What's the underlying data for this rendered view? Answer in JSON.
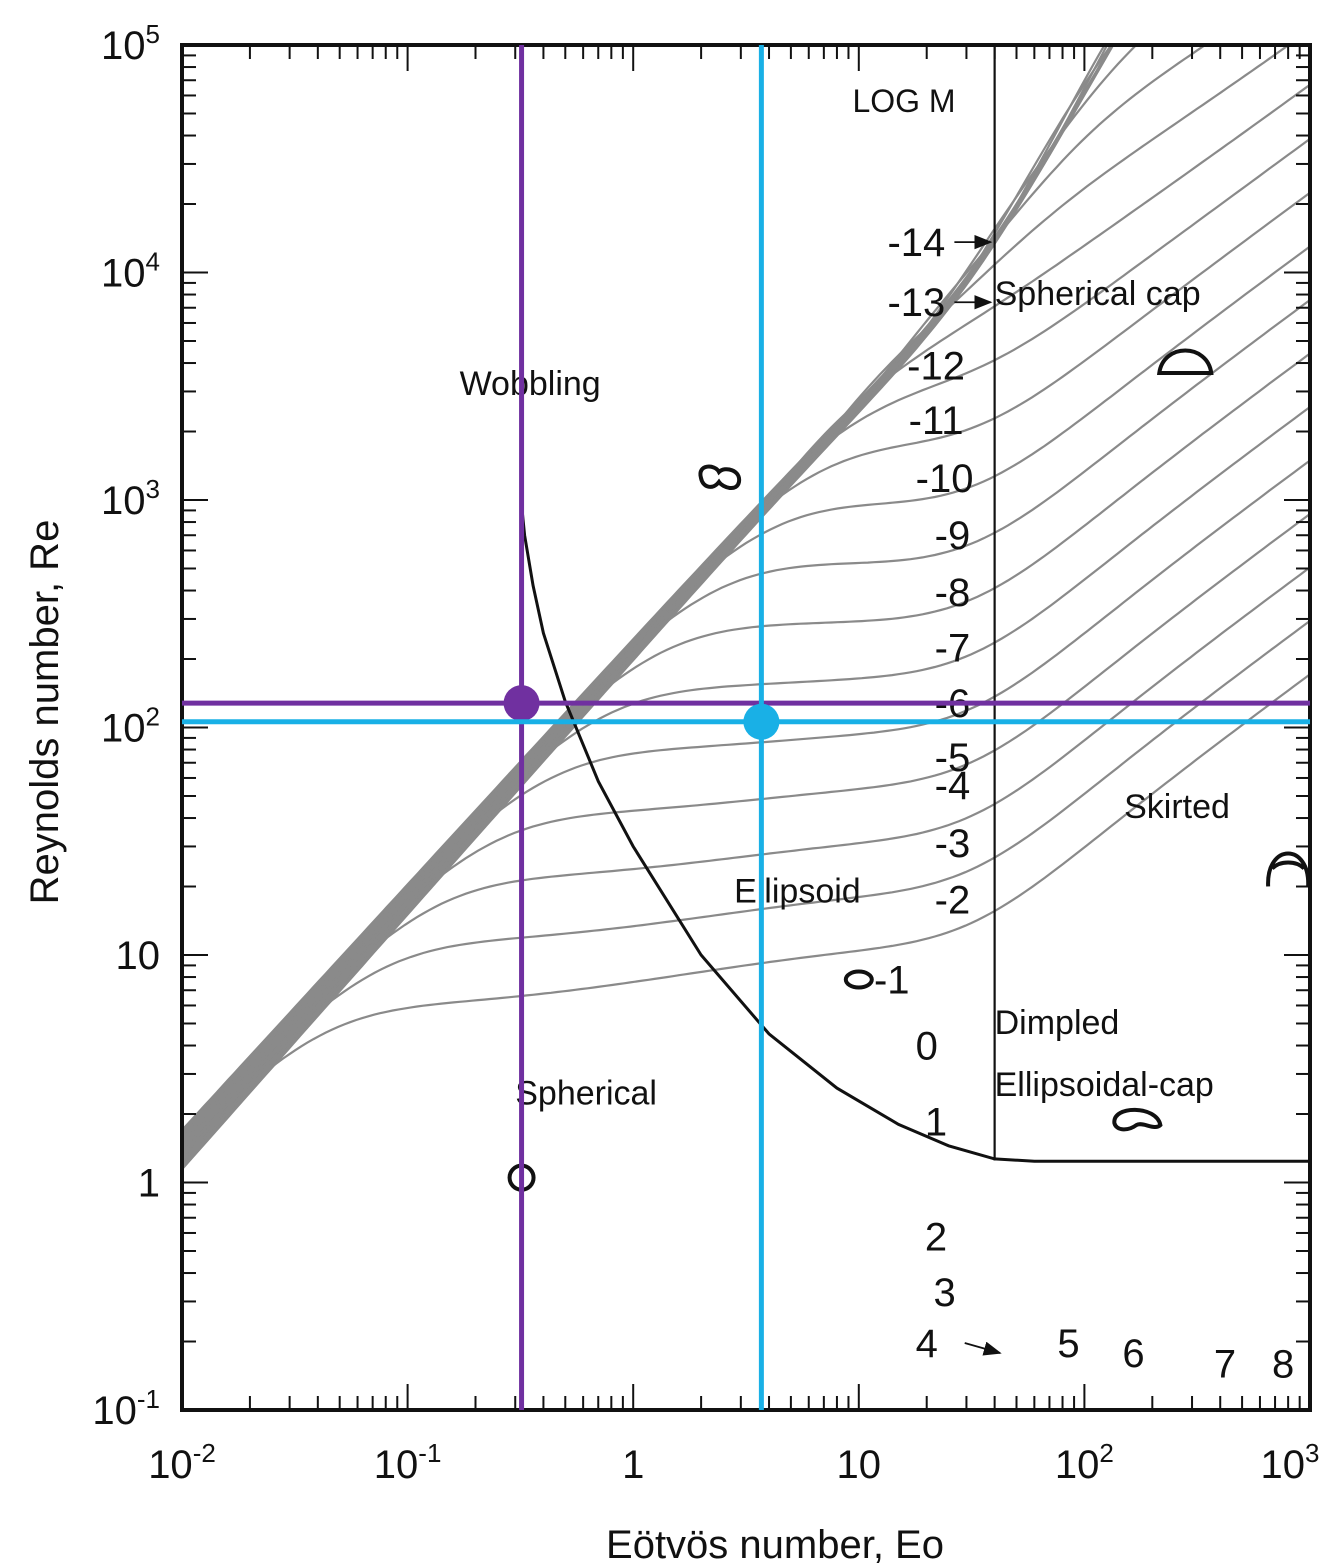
{
  "chart_data": {
    "type": "line",
    "title": "",
    "xlabel": "Eötvös number, Eo",
    "ylabel": "Reynolds number, Re",
    "xscale": "log",
    "yscale": "log",
    "xlim": [
      0.01,
      1000
    ],
    "ylim": [
      0.1,
      100000
    ],
    "x_ticks": [
      {
        "value": 0.01,
        "base": "10",
        "exp": "-2"
      },
      {
        "value": 0.1,
        "base": "10",
        "exp": "-1"
      },
      {
        "value": 1,
        "base": "1",
        "exp": ""
      },
      {
        "value": 10,
        "base": "10",
        "exp": ""
      },
      {
        "value": 100,
        "base": "10",
        "exp": "2"
      },
      {
        "value": 1000,
        "base": "10",
        "exp": "3"
      }
    ],
    "y_ticks": [
      {
        "value": 0.1,
        "base": "10",
        "exp": "-1"
      },
      {
        "value": 1,
        "base": "1",
        "exp": ""
      },
      {
        "value": 10,
        "base": "10",
        "exp": ""
      },
      {
        "value": 100,
        "base": "10",
        "exp": "2"
      },
      {
        "value": 1000,
        "base": "10",
        "exp": "3"
      },
      {
        "value": 10000,
        "base": "10",
        "exp": "4"
      },
      {
        "value": 100000,
        "base": "10",
        "exp": "5"
      }
    ],
    "grid": false,
    "logm_title": "LOG M",
    "logm_labels": [
      {
        "text": "-14",
        "x": 18,
        "y": 13600,
        "arrow_to_x": 40
      },
      {
        "text": "-13",
        "x": 18,
        "y": 7400,
        "arrow_to_x": 40
      },
      {
        "text": "-12",
        "x": 22,
        "y": 3900
      },
      {
        "text": "-11",
        "x": 22,
        "y": 2250
      },
      {
        "text": "-10",
        "x": 24,
        "y": 1250
      },
      {
        "text": "-9",
        "x": 26,
        "y": 700
      },
      {
        "text": "-8",
        "x": 26,
        "y": 395
      },
      {
        "text": "-7",
        "x": 26,
        "y": 225
      },
      {
        "text": "-6",
        "x": 26,
        "y": 128
      },
      {
        "text": "-5",
        "x": 26,
        "y": 74
      },
      {
        "text": "-4",
        "x": 26,
        "y": 56
      },
      {
        "text": "-3",
        "x": 26,
        "y": 31
      },
      {
        "text": "-2",
        "x": 26,
        "y": 17.5
      },
      {
        "text": "-1",
        "x": 14,
        "y": 7.8
      },
      {
        "text": "0",
        "x": 20,
        "y": 4
      },
      {
        "text": "1",
        "x": 22,
        "y": 1.85
      },
      {
        "text": "2",
        "x": 22,
        "y": 0.58
      },
      {
        "text": "3",
        "x": 24,
        "y": 0.33
      },
      {
        "text": "4",
        "x": 20,
        "y": 0.197,
        "arrow_to_x": 44,
        "arrow_to_y": 0.178
      },
      {
        "text": "5",
        "x": 85,
        "y": 0.197
      },
      {
        "text": "6",
        "x": 165,
        "y": 0.178
      },
      {
        "text": "7",
        "x": 420,
        "y": 0.16
      },
      {
        "text": "8",
        "x": 760,
        "y": 0.16
      }
    ],
    "regions": [
      {
        "name": "Spherical",
        "label_x": 0.3,
        "label_y": 2.2,
        "icon": "circle",
        "icon_x": 0.32,
        "icon_y": 1.05
      },
      {
        "name": "Wobbling",
        "label_x": 0.17,
        "label_y": 2900,
        "icon": "wobble",
        "icon_x": 2.4,
        "icon_y": 1250
      },
      {
        "name": "Ellipsoid",
        "label_x": 2.8,
        "label_y": 17,
        "icon": "ellipse",
        "icon_x": 10,
        "icon_y": 7.8
      },
      {
        "name": "Spherical cap",
        "label_x": 40,
        "label_y": 7200,
        "icon": "cap",
        "icon_x": 280,
        "icon_y": 4000
      },
      {
        "name": "Skirted",
        "label_x": 150,
        "label_y": 40,
        "icon": "skirt",
        "icon_x": 800,
        "icon_y": 25
      },
      {
        "name": "Dimpled",
        "name2": "Ellipsoidal-cap",
        "label_x": 40,
        "label_y": 4.5,
        "label2_y": 2.4,
        "icon": "dimple",
        "icon_x": 170,
        "icon_y": 1.9
      }
    ],
    "boundaries": {
      "vertical_line_x": 40,
      "vertical_line_from_y": 1.25,
      "vertical_line_to_y": 100000,
      "curve": [
        [
          0.32,
          950
        ],
        [
          0.33,
          700
        ],
        [
          0.36,
          420
        ],
        [
          0.4,
          260
        ],
        [
          0.5,
          130
        ],
        [
          0.7,
          58
        ],
        [
          1,
          30
        ],
        [
          2,
          10
        ],
        [
          4,
          4.5
        ],
        [
          8,
          2.6
        ],
        [
          15,
          1.8
        ],
        [
          25,
          1.45
        ],
        [
          40,
          1.27
        ],
        [
          60,
          1.24
        ],
        [
          100,
          1.24
        ],
        [
          1000,
          1.24
        ]
      ]
    },
    "highlight_points": [
      {
        "x": 0.32,
        "y": 128,
        "color": "#7030a0"
      },
      {
        "x": 3.7,
        "y": 106,
        "color": "#19b0e6"
      }
    ],
    "colors": {
      "m_lines": "#8a8a8a",
      "boundary": "#111111",
      "purple": "#7030a0",
      "cyan": "#19b0e6"
    }
  }
}
